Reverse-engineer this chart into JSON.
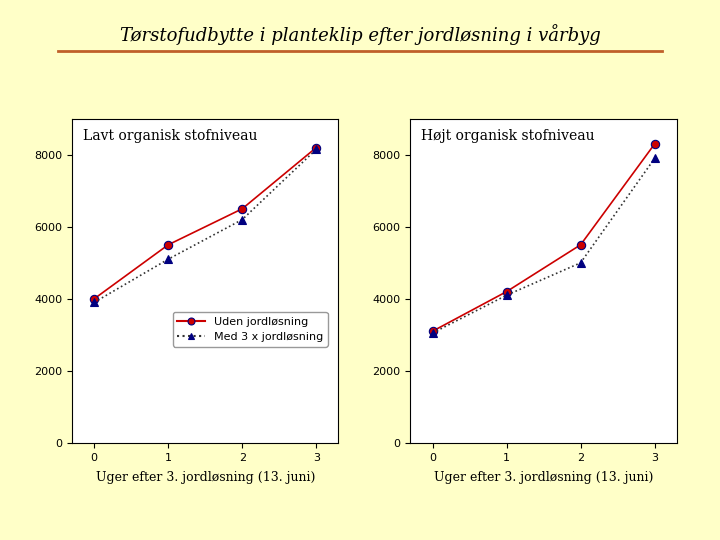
{
  "title": "Tørstofudbytte i planteklip efter jordløsning i vårbyg",
  "title_fontsize": 13,
  "title_color": "#000000",
  "title_underline_color": "#C0602A",
  "background_color": "#FFFFC8",
  "plot_bg_color": "#FFFFFF",
  "subplot1_title": "Lavt organisk stofniveau",
  "subplot2_title": "Højt organisk stofniveau",
  "xlabel": "Uger efter 3. jordløsning (13. juni)",
  "xlabel_fontsize": 9,
  "x": [
    0,
    1,
    2,
    3
  ],
  "lavt_uden": [
    4000,
    5500,
    6500,
    8200
  ],
  "lavt_med": [
    3900,
    5100,
    6200,
    8150
  ],
  "hoejt_uden": [
    3100,
    4200,
    5500,
    8300
  ],
  "hoejt_med": [
    3050,
    4100,
    5000,
    7900
  ],
  "ylim_lavt": [
    0,
    9000
  ],
  "ylim_hoejt": [
    0,
    9000
  ],
  "yticks": [
    0,
    2000,
    4000,
    6000,
    8000
  ],
  "line1_color": "#CC0000",
  "line1_style": "-",
  "line1_marker": "o",
  "line1_marker_facecolor": "#CC0000",
  "line1_marker_edgecolor": "#000080",
  "line1_label": "Uden jordløsning",
  "line2_color": "#333333",
  "line2_style": ":",
  "line2_marker": "^",
  "line2_marker_facecolor": "#000080",
  "line2_marker_edgecolor": "#000080",
  "line2_label": "Med 3 x jordløsning",
  "legend_fontsize": 8,
  "tick_fontsize": 8,
  "subplot_title_fontsize": 10,
  "marker_size": 6,
  "line_width": 1.2
}
